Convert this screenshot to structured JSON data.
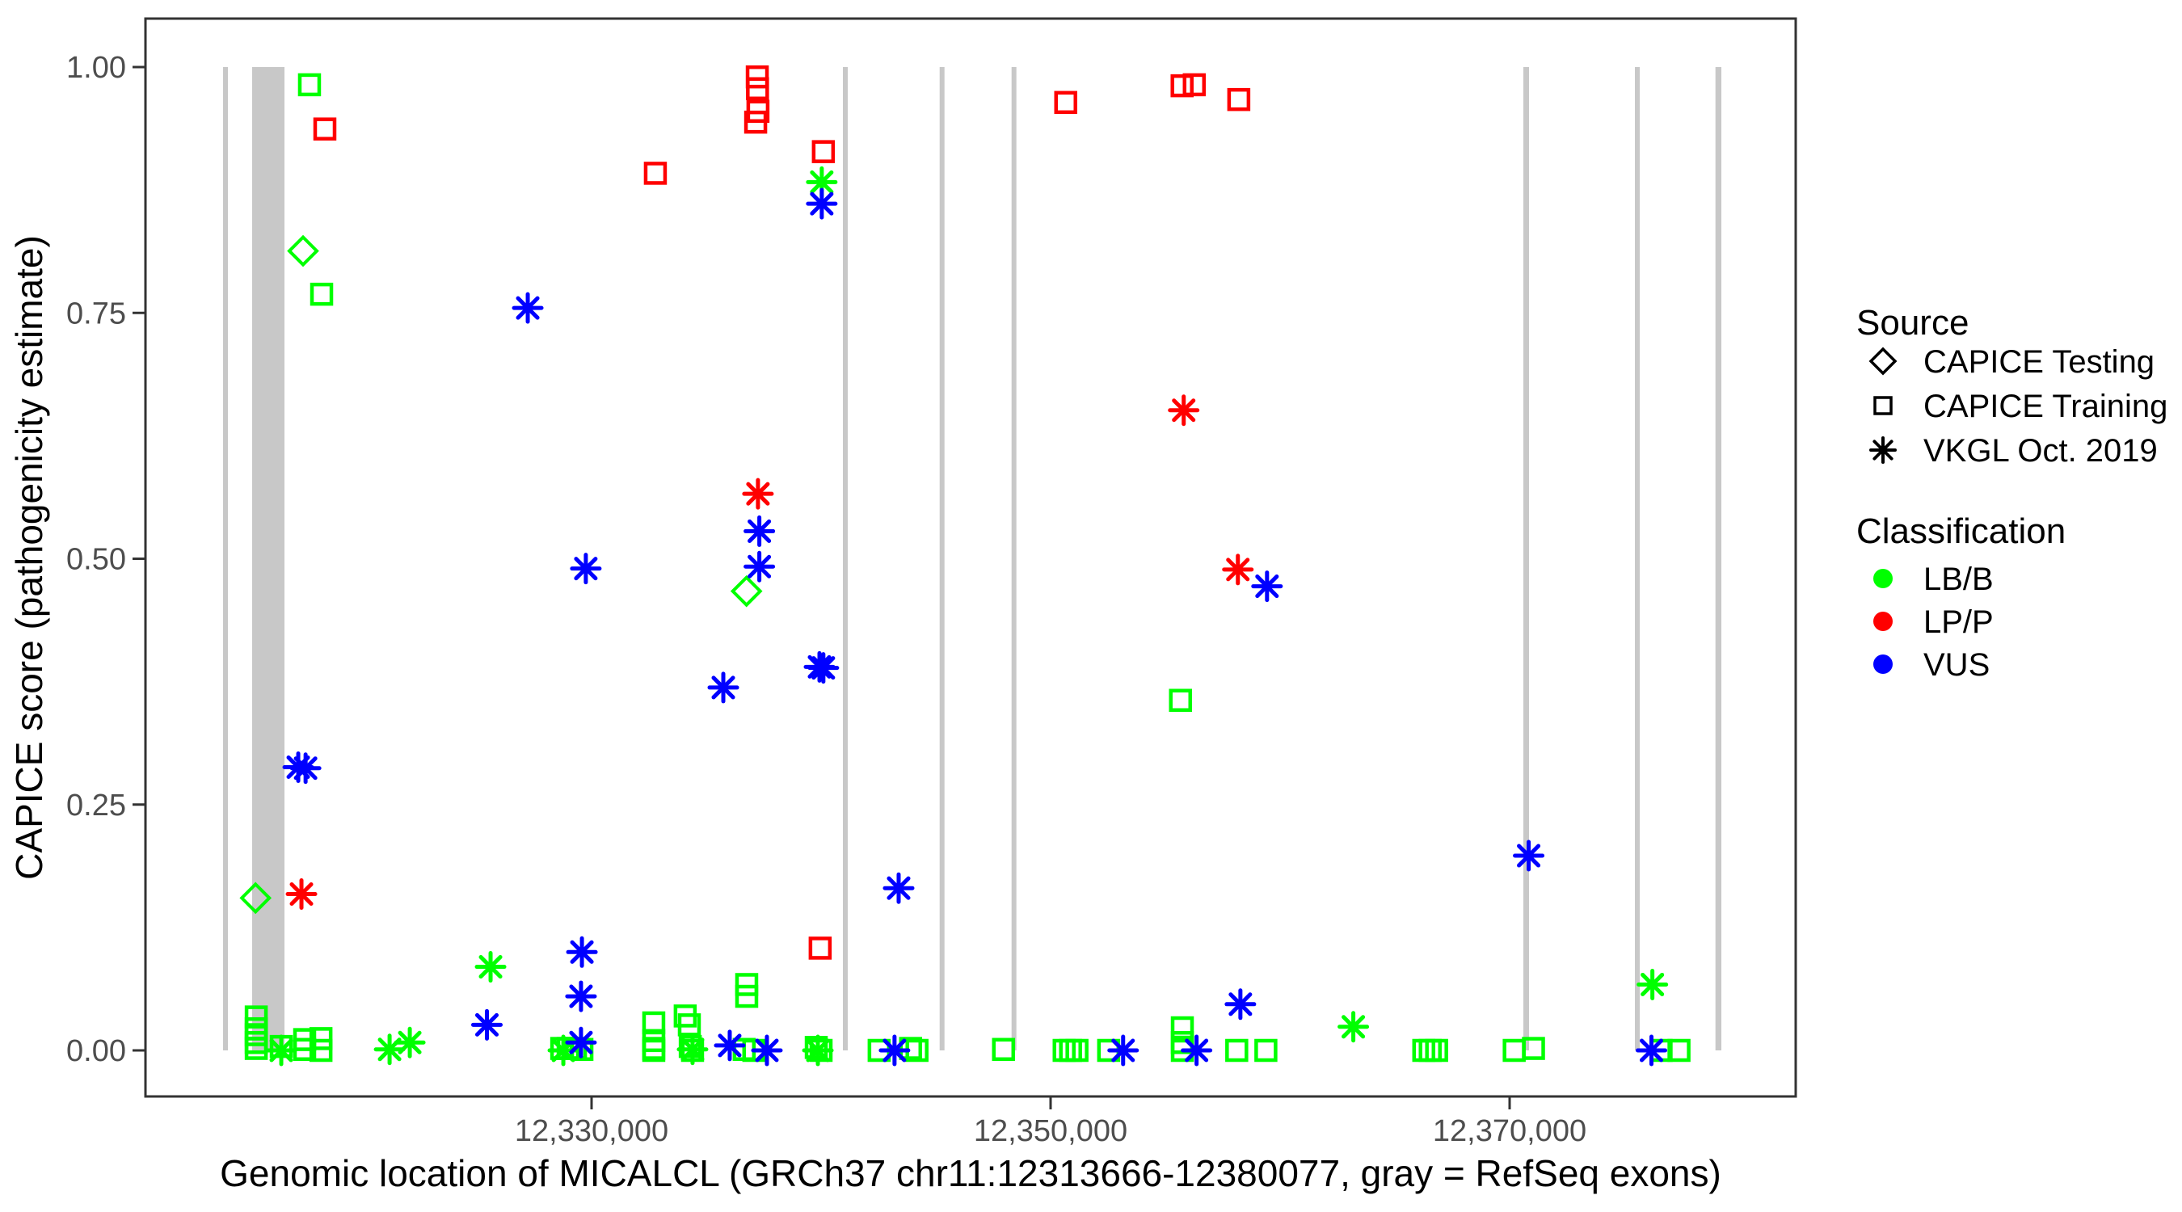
{
  "legend": {
    "source_title": "Source",
    "source_items": [
      {
        "label": "CAPICE Testing",
        "shape": "diamond"
      },
      {
        "label": "CAPICE Training",
        "shape": "square"
      },
      {
        "label": "VKGL Oct. 2019",
        "shape": "asterisk"
      }
    ],
    "classification_title": "Classification",
    "classification_items": [
      {
        "label": "LB/B",
        "color": "#00FF00"
      },
      {
        "label": "LP/P",
        "color": "#FF0000"
      },
      {
        "label": "VUS",
        "color": "#0000FF"
      }
    ]
  },
  "chart_data": {
    "type": "scatter",
    "title": "",
    "xlabel": "Genomic location of MICALCL (GRCh37 chr11:12313666-12380077, gray = RefSeq exons)",
    "ylabel": "CAPICE score (pathogenicity estimate)",
    "gene_region": "chr11:12313666-12380077",
    "x_ticks": [
      {
        "value": 12330000,
        "label": "12,330,000"
      },
      {
        "value": 12350000,
        "label": "12,350,000"
      },
      {
        "value": 12370000,
        "label": "12,370,000"
      }
    ],
    "y_ticks": [
      {
        "value": 0.0,
        "label": "0.00"
      },
      {
        "value": 0.25,
        "label": "0.25"
      },
      {
        "value": 0.5,
        "label": "0.50"
      },
      {
        "value": 0.75,
        "label": "0.75"
      },
      {
        "value": 1.0,
        "label": "1.00"
      }
    ],
    "x_range_bp": [
      12310563,
      12382464
    ],
    "y_range": [
      -0.047,
      1.049
    ],
    "grid": false,
    "legend_position": "right",
    "colors": {
      "LB/B": "#00FF00",
      "LP/P": "#FF0000",
      "VUS": "#0000FF"
    },
    "exon_color": "#C8C8C8",
    "exons_bp": [
      [
        12313944,
        12314155
      ],
      [
        12315211,
        12316620
      ],
      [
        12340950,
        12341162
      ],
      [
        12345166,
        12345363
      ],
      [
        12348299,
        12348475
      ],
      [
        12370599,
        12370845
      ],
      [
        12375458,
        12375645
      ],
      [
        12378968,
        12379225
      ]
    ],
    "series": [
      {
        "name": "CAPICE Testing",
        "shape": "diamond",
        "points": [
          {
            "bp": 12315360,
            "score": 0.155,
            "cls": "LB/B"
          },
          {
            "bp": 12317430,
            "score": 0.813,
            "cls": "LB/B"
          },
          {
            "bp": 12336750,
            "score": 0.467,
            "cls": "LB/B"
          }
        ]
      },
      {
        "name": "CAPICE Training",
        "shape": "square",
        "points": [
          {
            "bp": 12318380,
            "score": 0.937,
            "cls": "LP/P"
          },
          {
            "bp": 12332780,
            "score": 0.892,
            "cls": "LP/P"
          },
          {
            "bp": 12337220,
            "score": 0.99,
            "cls": "LP/P"
          },
          {
            "bp": 12337230,
            "score": 0.978,
            "cls": "LP/P"
          },
          {
            "bp": 12337250,
            "score": 0.955,
            "cls": "LP/P"
          },
          {
            "bp": 12337150,
            "score": 0.944,
            "cls": "LP/P"
          },
          {
            "bp": 12340100,
            "score": 0.914,
            "cls": "LP/P"
          },
          {
            "bp": 12339960,
            "score": 0.104,
            "cls": "LP/P"
          },
          {
            "bp": 12350660,
            "score": 0.964,
            "cls": "LP/P"
          },
          {
            "bp": 12355730,
            "score": 0.981,
            "cls": "LP/P"
          },
          {
            "bp": 12356260,
            "score": 0.982,
            "cls": "LP/P"
          },
          {
            "bp": 12358200,
            "score": 0.967,
            "cls": "LP/P"
          },
          {
            "bp": 12317710,
            "score": 0.982,
            "cls": "LB/B"
          },
          {
            "bp": 12318240,
            "score": 0.769,
            "cls": "LB/B"
          },
          {
            "bp": 12355660,
            "score": 0.356,
            "cls": "LB/B"
          },
          {
            "bp": 12315390,
            "score": 0.034,
            "cls": "LB/B"
          },
          {
            "bp": 12315390,
            "score": 0.022,
            "cls": "LB/B"
          },
          {
            "bp": 12315390,
            "score": 0.016,
            "cls": "LB/B"
          },
          {
            "bp": 12315390,
            "score": 0.008,
            "cls": "LB/B"
          },
          {
            "bp": 12315390,
            "score": 0.002,
            "cls": "LB/B"
          },
          {
            "bp": 12316480,
            "score": 0.004,
            "cls": "LB/B"
          },
          {
            "bp": 12317500,
            "score": 0.011,
            "cls": "LB/B"
          },
          {
            "bp": 12317500,
            "score": 0.001,
            "cls": "LB/B"
          },
          {
            "bp": 12318210,
            "score": 0.012,
            "cls": "LB/B"
          },
          {
            "bp": 12318210,
            "score": 0.0,
            "cls": "LB/B"
          },
          {
            "bp": 12328700,
            "score": 0.002,
            "cls": "LB/B"
          },
          {
            "bp": 12328980,
            "score": 0.002,
            "cls": "LB/B"
          },
          {
            "bp": 12329300,
            "score": 0.002,
            "cls": "LB/B"
          },
          {
            "bp": 12329580,
            "score": 0.001,
            "cls": "LB/B"
          },
          {
            "bp": 12332710,
            "score": 0.028,
            "cls": "LB/B"
          },
          {
            "bp": 12332710,
            "score": 0.01,
            "cls": "LB/B"
          },
          {
            "bp": 12332710,
            "score": 0.002,
            "cls": "LB/B"
          },
          {
            "bp": 12332710,
            "score": 0.0,
            "cls": "LB/B"
          },
          {
            "bp": 12334080,
            "score": 0.035,
            "cls": "LB/B"
          },
          {
            "bp": 12334260,
            "score": 0.026,
            "cls": "LB/B"
          },
          {
            "bp": 12334300,
            "score": 0.004,
            "cls": "LB/B"
          },
          {
            "bp": 12334400,
            "score": 0.0,
            "cls": "LB/B"
          },
          {
            "bp": 12336650,
            "score": 0.001,
            "cls": "LB/B"
          },
          {
            "bp": 12337070,
            "score": 0.0,
            "cls": "LB/B"
          },
          {
            "bp": 12336760,
            "score": 0.067,
            "cls": "LB/B"
          },
          {
            "bp": 12336760,
            "score": 0.055,
            "cls": "LB/B"
          },
          {
            "bp": 12339790,
            "score": 0.003,
            "cls": "LB/B"
          },
          {
            "bp": 12340000,
            "score": 0.0,
            "cls": "LB/B"
          },
          {
            "bp": 12342530,
            "score": 0.0,
            "cls": "LB/B"
          },
          {
            "bp": 12343900,
            "score": 0.002,
            "cls": "LB/B"
          },
          {
            "bp": 12344180,
            "score": 0.0,
            "cls": "LB/B"
          },
          {
            "bp": 12347950,
            "score": 0.001,
            "cls": "LB/B"
          },
          {
            "bp": 12350590,
            "score": 0.0,
            "cls": "LB/B"
          },
          {
            "bp": 12350870,
            "score": 0.0,
            "cls": "LB/B"
          },
          {
            "bp": 12351150,
            "score": 0.0,
            "cls": "LB/B"
          },
          {
            "bp": 12352530,
            "score": 0.0,
            "cls": "LB/B"
          },
          {
            "bp": 12355740,
            "score": 0.023,
            "cls": "LB/B"
          },
          {
            "bp": 12355740,
            "score": 0.008,
            "cls": "LB/B"
          },
          {
            "bp": 12355740,
            "score": 0.0,
            "cls": "LB/B"
          },
          {
            "bp": 12358110,
            "score": 0.0,
            "cls": "LB/B"
          },
          {
            "bp": 12359380,
            "score": 0.0,
            "cls": "LB/B"
          },
          {
            "bp": 12366260,
            "score": 0.0,
            "cls": "LB/B"
          },
          {
            "bp": 12366540,
            "score": 0.0,
            "cls": "LB/B"
          },
          {
            "bp": 12366820,
            "score": 0.0,
            "cls": "LB/B"
          },
          {
            "bp": 12370200,
            "score": 0.0,
            "cls": "LB/B"
          },
          {
            "bp": 12371040,
            "score": 0.002,
            "cls": "LB/B"
          },
          {
            "bp": 12376600,
            "score": 0.0,
            "cls": "LB/B"
          },
          {
            "bp": 12377380,
            "score": 0.0,
            "cls": "LB/B"
          }
        ]
      },
      {
        "name": "VKGL Oct. 2019",
        "shape": "asterisk",
        "points": [
          {
            "bp": 12340030,
            "score": 0.883,
            "cls": "LB/B"
          },
          {
            "bp": 12325600,
            "score": 0.085,
            "cls": "LB/B"
          },
          {
            "bp": 12321200,
            "score": 0.001,
            "cls": "LB/B"
          },
          {
            "bp": 12322080,
            "score": 0.008,
            "cls": "LB/B"
          },
          {
            "bp": 12316480,
            "score": 0.0,
            "cls": "LB/B"
          },
          {
            "bp": 12328770,
            "score": 0.0,
            "cls": "LB/B"
          },
          {
            "bp": 12334400,
            "score": 0.001,
            "cls": "LB/B"
          },
          {
            "bp": 12363190,
            "score": 0.024,
            "cls": "LB/B"
          },
          {
            "bp": 12376220,
            "score": 0.067,
            "cls": "LB/B"
          },
          {
            "bp": 12339860,
            "score": 0.0,
            "cls": "LB/B"
          },
          {
            "bp": 12317360,
            "score": 0.159,
            "cls": "LP/P"
          },
          {
            "bp": 12337250,
            "score": 0.566,
            "cls": "LP/P"
          },
          {
            "bp": 12355800,
            "score": 0.651,
            "cls": "LP/P"
          },
          {
            "bp": 12358160,
            "score": 0.489,
            "cls": "LP/P"
          },
          {
            "bp": 12317220,
            "score": 0.288,
            "cls": "VUS"
          },
          {
            "bp": 12317540,
            "score": 0.287,
            "cls": "VUS"
          },
          {
            "bp": 12327220,
            "score": 0.755,
            "cls": "VUS"
          },
          {
            "bp": 12329750,
            "score": 0.49,
            "cls": "VUS"
          },
          {
            "bp": 12335740,
            "score": 0.369,
            "cls": "VUS"
          },
          {
            "bp": 12339930,
            "score": 0.39,
            "cls": "VUS"
          },
          {
            "bp": 12340100,
            "score": 0.389,
            "cls": "VUS"
          },
          {
            "bp": 12337310,
            "score": 0.528,
            "cls": "VUS"
          },
          {
            "bp": 12337310,
            "score": 0.492,
            "cls": "VUS"
          },
          {
            "bp": 12340030,
            "score": 0.861,
            "cls": "VUS"
          },
          {
            "bp": 12359430,
            "score": 0.472,
            "cls": "VUS"
          },
          {
            "bp": 12343380,
            "score": 0.165,
            "cls": "VUS"
          },
          {
            "bp": 12370830,
            "score": 0.198,
            "cls": "VUS"
          },
          {
            "bp": 12325440,
            "score": 0.026,
            "cls": "VUS"
          },
          {
            "bp": 12329580,
            "score": 0.1,
            "cls": "VUS"
          },
          {
            "bp": 12329540,
            "score": 0.055,
            "cls": "VUS"
          },
          {
            "bp": 12329540,
            "score": 0.008,
            "cls": "VUS"
          },
          {
            "bp": 12336020,
            "score": 0.005,
            "cls": "VUS"
          },
          {
            "bp": 12337640,
            "score": 0.0,
            "cls": "VUS"
          },
          {
            "bp": 12343200,
            "score": 0.0,
            "cls": "VUS"
          },
          {
            "bp": 12353160,
            "score": 0.0,
            "cls": "VUS"
          },
          {
            "bp": 12356360,
            "score": 0.0,
            "cls": "VUS"
          },
          {
            "bp": 12358270,
            "score": 0.047,
            "cls": "VUS"
          },
          {
            "bp": 12376180,
            "score": 0.0,
            "cls": "VUS"
          }
        ]
      }
    ]
  }
}
